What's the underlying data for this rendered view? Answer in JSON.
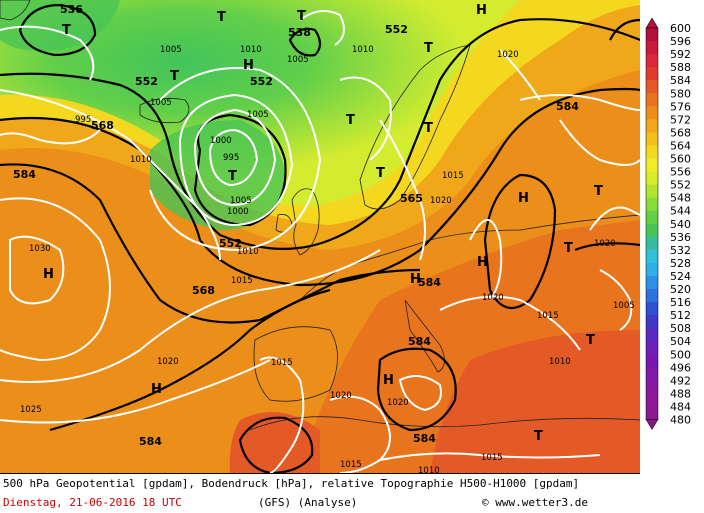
{
  "footer": {
    "line1": "500 hPa Geopotential [gpdam], Bodendruck [hPa], relative Topographie H500-H1000 [gpdam]",
    "date": "Dienstag, 21-06-2016  18 UTC",
    "model": "(GFS)  (Analyse)",
    "copyright": "© www.wetter3.de"
  },
  "legend": {
    "values": [
      "600",
      "596",
      "592",
      "588",
      "584",
      "580",
      "576",
      "572",
      "568",
      "564",
      "560",
      "556",
      "552",
      "548",
      "544",
      "540",
      "536",
      "532",
      "528",
      "524",
      "520",
      "516",
      "512",
      "508",
      "504",
      "500",
      "496",
      "492",
      "488",
      "484",
      "480"
    ],
    "colors": [
      "#b0103a",
      "#c81a3a",
      "#d8283a",
      "#e03c2e",
      "#e45a26",
      "#e8741e",
      "#ec8e1a",
      "#f0a81a",
      "#f2c01c",
      "#f4d820",
      "#f2ec28",
      "#d8ec2c",
      "#b0e430",
      "#88dc38",
      "#62d044",
      "#48c454",
      "#38bca0",
      "#30c0d8",
      "#30aee8",
      "#3090e8",
      "#3070e0",
      "#3050d4",
      "#4038c8",
      "#5828c0",
      "#6c20b8",
      "#7818b0",
      "#8018a8",
      "#8818a0",
      "#901898",
      "#8c1890",
      "#801888"
    ]
  },
  "map": {
    "highs": [
      {
        "label": "H"
      },
      {
        "label": "H"
      },
      {
        "label": "H"
      },
      {
        "label": "H"
      },
      {
        "label": "H"
      },
      {
        "label": "H"
      },
      {
        "label": "H"
      },
      {
        "label": "H"
      }
    ],
    "lows": [
      {
        "label": "T"
      },
      {
        "label": "T"
      },
      {
        "label": "T"
      },
      {
        "label": "T"
      },
      {
        "label": "T"
      },
      {
        "label": "T"
      },
      {
        "label": "T"
      },
      {
        "label": "T"
      },
      {
        "label": "T"
      },
      {
        "label": "T"
      },
      {
        "label": "T"
      },
      {
        "label": "T"
      },
      {
        "label": "T"
      }
    ],
    "geopotential_labels": [
      "536",
      "538",
      "552",
      "552",
      "552",
      "552",
      "568",
      "568",
      "584",
      "584",
      "584",
      "584",
      "584",
      "584",
      "565"
    ],
    "pressure_labels": [
      "1005",
      "1005",
      "1010",
      "1005",
      "1010",
      "1005",
      "1000",
      "995",
      "995",
      "1000",
      "1005",
      "1010",
      "1015",
      "1020",
      "1015",
      "1020",
      "1030",
      "1020",
      "1025",
      "1020",
      "1015",
      "1020",
      "1015",
      "1015",
      "1010",
      "1015",
      "1010",
      "1020",
      "1020",
      "1005",
      "1010"
    ]
  }
}
